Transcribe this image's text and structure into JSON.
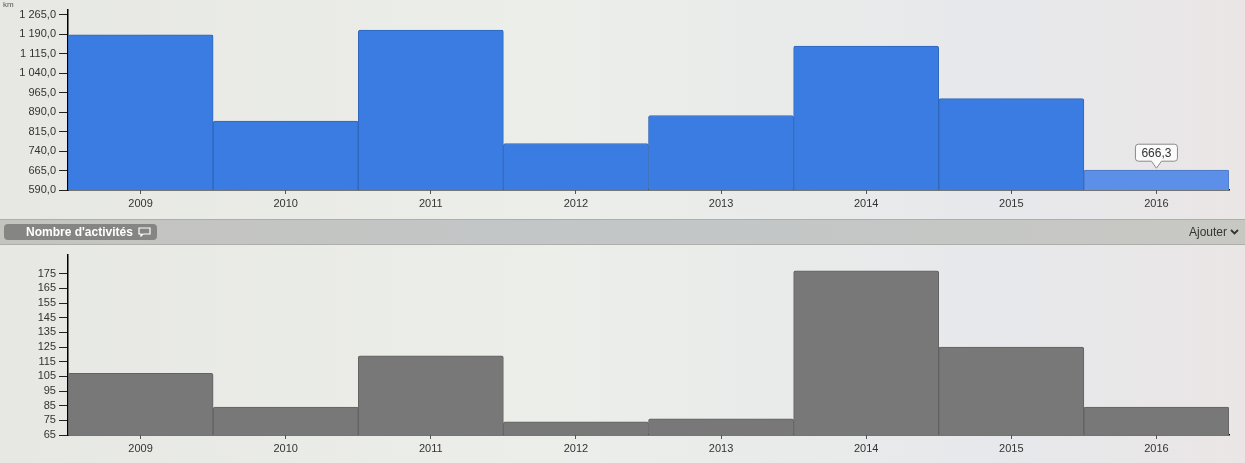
{
  "chart_data": [
    {
      "type": "bar",
      "ylabel": "km",
      "categories": [
        "2009",
        "2010",
        "2011",
        "2012",
        "2013",
        "2014",
        "2015",
        "2016"
      ],
      "values": [
        1188,
        856,
        1206,
        769,
        877,
        1144,
        942,
        666.3
      ],
      "colors": [
        "#3b7ce2",
        "#3b7ce2",
        "#3b7ce2",
        "#3b7ce2",
        "#3b7ce2",
        "#3b7ce2",
        "#3b7ce2",
        "#5b8fe8"
      ],
      "value_labels": [
        null,
        null,
        null,
        null,
        null,
        null,
        null,
        "666,3"
      ],
      "ylim": [
        590,
        1285
      ],
      "yticks": [
        {
          "value": 590,
          "label": "590,0"
        },
        {
          "value": 665,
          "label": "665,0"
        },
        {
          "value": 740,
          "label": "740,0"
        },
        {
          "value": 815,
          "label": "815,0"
        },
        {
          "value": 890,
          "label": "890,0"
        },
        {
          "value": 965,
          "label": "965,0"
        },
        {
          "value": 1040,
          "label": "1 040,0"
        },
        {
          "value": 1115,
          "label": "1 115,0"
        },
        {
          "value": 1190,
          "label": "1 190,0"
        },
        {
          "value": 1265,
          "label": "1 265,0"
        }
      ]
    },
    {
      "type": "bar",
      "title": "Nombre d'activités",
      "annotations": [
        "Ajouter"
      ],
      "categories": [
        "2009",
        "2010",
        "2011",
        "2012",
        "2013",
        "2014",
        "2015",
        "2016"
      ],
      "values": [
        107,
        84,
        119,
        74,
        76,
        177,
        125,
        84
      ],
      "color": "#787878",
      "ylim": [
        65,
        188
      ],
      "yticks": [
        65,
        75,
        85,
        95,
        105,
        115,
        125,
        135,
        145,
        155,
        165,
        175
      ]
    }
  ]
}
